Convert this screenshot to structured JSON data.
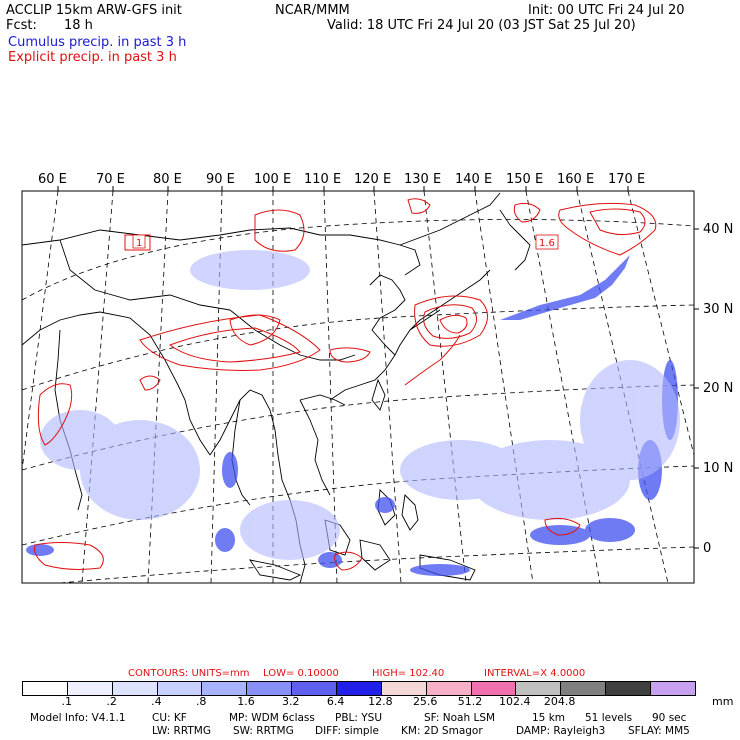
{
  "header": {
    "left_line1": "ACCLIP 15km ARW-GFS init",
    "left_line2_label": "Fcst:",
    "left_line2_value": "18 h",
    "center": "NCAR/MMM",
    "init": "Init: 00 UTC Fri 24 Jul 20",
    "valid": "Valid: 18 UTC Fri 24 Jul 20 (03 JST Sat 25 Jul 20)",
    "legend_cumulus": "Cumulus precip. in past 3 h",
    "legend_explicit": "Explicit precip. in past 3 h"
  },
  "map": {
    "lon_labels": [
      "60 E",
      "70 E",
      "80 E",
      "90 E",
      "100 E",
      "110 E",
      "120 E",
      "130 E",
      "140 E",
      "150 E",
      "160 E",
      "170 E"
    ],
    "lat_labels": [
      "40 N",
      "30 N",
      "20 N",
      "10 N",
      "0"
    ],
    "contour_labels": [
      "1",
      "1.6"
    ],
    "colors": {
      "cumulus": "#3030f0",
      "explicit": "#e01010",
      "coast": "#000000"
    }
  },
  "contours": {
    "units": "CONTOURS:  UNITS=mm",
    "low": "LOW=  0.10000",
    "high": "HIGH=   102.40",
    "interval": "INTERVAL=X   4.0000"
  },
  "colorbar": {
    "colors": [
      "#ffffff",
      "#eef0ff",
      "#dde2ff",
      "#c8d0ff",
      "#a8b4ff",
      "#8890f8",
      "#6060f0",
      "#2020e8",
      "#f4d8d8",
      "#f8b0c8",
      "#f070b0",
      "#c0c0c0",
      "#808080",
      "#404040",
      "#c8a0f0"
    ],
    "ticks": [
      ".1",
      ".2",
      ".4",
      ".8",
      "1.6",
      "3.2",
      "6.4",
      "12.8",
      "25.6",
      "51.2",
      "102.4",
      "204.8"
    ],
    "unit": "mm"
  },
  "model_info": {
    "line1": [
      "Model Info: V4.1.1",
      "CU: KF",
      "MP: WDM 6class",
      "PBL: YSU",
      "SF: Noah LSM",
      "15 km",
      "51 levels",
      "90 sec"
    ],
    "line2": [
      "LW: RRTMG",
      "SW: RRTMG",
      "DIFF: simple",
      "KM: 2D Smagor",
      "DAMP: Rayleigh3",
      "SFLAY: MM5"
    ]
  }
}
